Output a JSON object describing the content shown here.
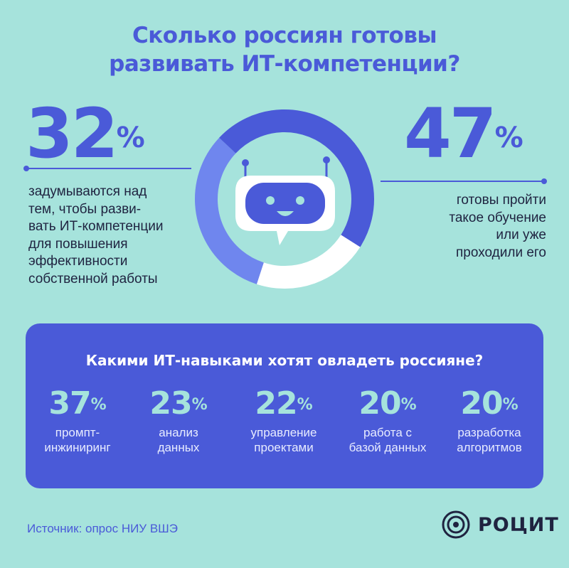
{
  "title": {
    "line1": "Сколько россиян готовы",
    "line2": "развивать ИТ-компетенции?"
  },
  "left_stat": {
    "value": "32",
    "unit": "%",
    "lines": [
      "задумываются над",
      "тем, чтобы разви-",
      "вать ИТ-компетенции",
      "для повышения",
      "эффективности",
      "собственной работы"
    ]
  },
  "right_stat": {
    "value": "47",
    "unit": "%",
    "lines": [
      "готовы пройти",
      "такое обучение",
      "или уже",
      "проходили его"
    ]
  },
  "donut": {
    "segments": [
      {
        "name": "32%",
        "fraction": 0.32,
        "color": "#6f86ee"
      },
      {
        "name": "47%",
        "fraction": 0.47,
        "color": "#4a5ad8"
      },
      {
        "name": "remainder",
        "fraction": 0.21,
        "color": "#ffffff"
      }
    ],
    "icon": "robot-chat-icon"
  },
  "skills": {
    "title": "Какими ИТ-навыками хотят овладеть россияне?",
    "items": [
      {
        "value": "37",
        "unit": "%",
        "l1": "промпт-",
        "l2": "инжиниринг"
      },
      {
        "value": "23",
        "unit": "%",
        "l1": "анализ",
        "l2": "данных"
      },
      {
        "value": "22",
        "unit": "%",
        "l1": "управление",
        "l2": "проектами"
      },
      {
        "value": "20",
        "unit": "%",
        "l1": "работа с",
        "l2": "базой данных"
      },
      {
        "value": "20",
        "unit": "%",
        "l1": "разработка",
        "l2": "алгоритмов"
      }
    ]
  },
  "footer": {
    "source": "Источник: опрос НИУ ВШЭ",
    "brand": "РОЦИТ",
    "brand_icon": "rocit-logo-icon"
  },
  "colors": {
    "background": "#a6e3dc",
    "accent": "#4a5ad8",
    "accent_light": "#6f86ee",
    "text": "#1f2340"
  }
}
